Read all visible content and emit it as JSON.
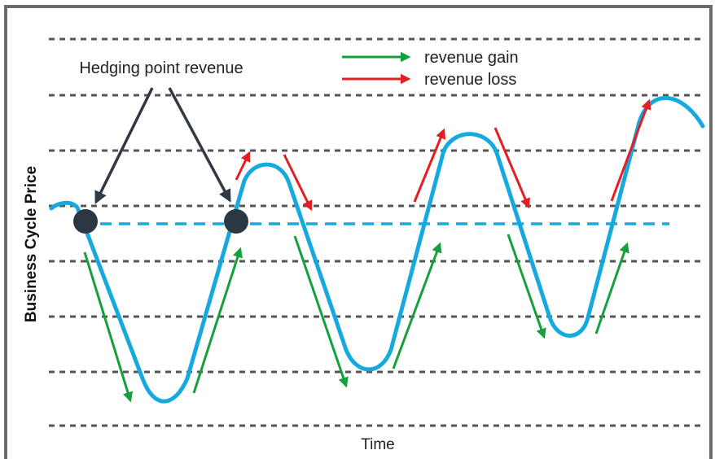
{
  "callout": {
    "label": "Hedging point revenue"
  },
  "legend": {
    "gain_label": "revenue gain",
    "loss_label": "revenue loss",
    "gain_color": "#14a03c",
    "loss_color": "#e31e24"
  },
  "axes": {
    "y_label": "Business Cycle Price",
    "x_label": "Time"
  },
  "colors": {
    "curve": "#16a9df",
    "hedge_line": "#16a9df",
    "gridline": "#555555",
    "frame": "#6b6b6b",
    "hedge_point": "#2b3742",
    "callout_arrow": "#2f3a44"
  }
}
